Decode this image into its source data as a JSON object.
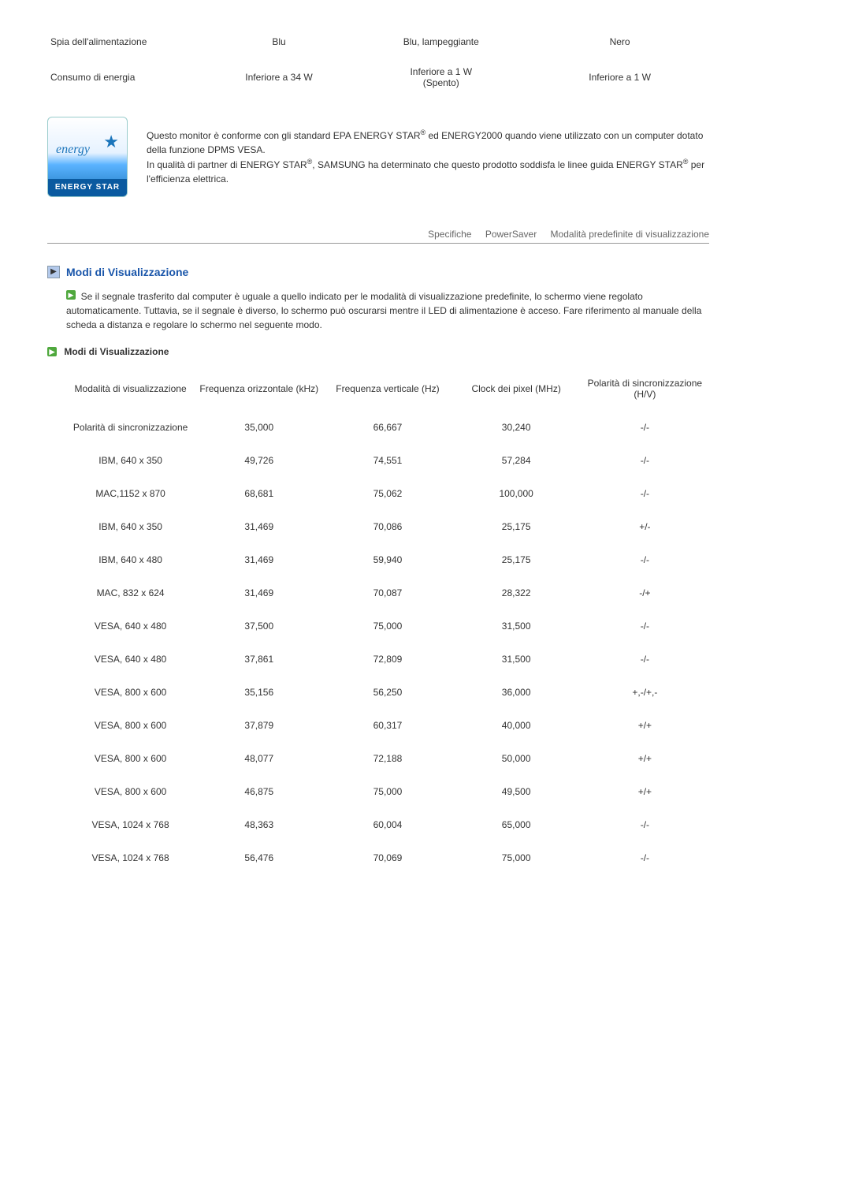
{
  "top_table": {
    "rows": [
      {
        "label": "Spia dell'alimentazione",
        "c1": "Blu",
        "c2": "Blu, lampeggiante",
        "c3": "Nero"
      },
      {
        "label": "Consumo di energia",
        "c1": "Inferiore a 34 W",
        "c2": "Inferiore a 1 W\n(Spento)",
        "c3": "Inferiore a 1 W"
      }
    ]
  },
  "estar": {
    "script": "energy",
    "band": "ENERGY STAR",
    "p1a": "Questo monitor è conforme con gli standard EPA ENERGY STAR",
    "p1b": " ed ENERGY2000 quando viene utilizzato con un computer dotato della funzione DPMS VESA.",
    "p2a": "In qualità di partner di ENERGY STAR",
    "p2b": ", SAMSUNG ha determinato che questo prodotto soddisfa le linee guida ENERGY STAR",
    "p2c": " per l'efficienza elettrica.",
    "reg": "®"
  },
  "tabs": {
    "t1": "Specifiche",
    "t2": "PowerSaver",
    "t3": "Modalità predefinite di visualizzazione"
  },
  "section_title": "Modi di Visualizzazione",
  "intro": "Se il segnale trasferito dal computer è uguale a quello indicato per le modalità di visualizzazione predefinite, lo schermo viene regolato automaticamente. Tuttavia, se il segnale è diverso, lo schermo può oscurarsi mentre il LED di alimentazione è acceso. Fare riferimento al manuale della scheda a distanza e regolare lo schermo nel seguente modo.",
  "sub_title": "Modi di Visualizzazione",
  "modes": {
    "headers": {
      "h1": "Modalità di visualizzazione",
      "h2": "Frequenza orizzontale (kHz)",
      "h3": "Frequenza verticale (Hz)",
      "h4": "Clock dei pixel (MHz)",
      "h5": "Polarità di sincronizzazione (H/V)"
    },
    "rows": [
      {
        "c1": "Polarità di sincronizzazione",
        "c2": "35,000",
        "c3": "66,667",
        "c4": "30,240",
        "c5": "-/-"
      },
      {
        "c1": "IBM, 640 x 350",
        "c2": "49,726",
        "c3": "74,551",
        "c4": "57,284",
        "c5": "-/-"
      },
      {
        "c1": "MAC,1152 x 870",
        "c2": "68,681",
        "c3": "75,062",
        "c4": "100,000",
        "c5": "-/-"
      },
      {
        "c1": "IBM, 640 x 350",
        "c2": "31,469",
        "c3": "70,086",
        "c4": "25,175",
        "c5": "+/-"
      },
      {
        "c1": "IBM, 640 x 480",
        "c2": "31,469",
        "c3": "59,940",
        "c4": "25,175",
        "c5": "-/-"
      },
      {
        "c1": "MAC, 832 x 624",
        "c2": "31,469",
        "c3": "70,087",
        "c4": "28,322",
        "c5": "-/+"
      },
      {
        "c1": "VESA, 640 x 480",
        "c2": "37,500",
        "c3": "75,000",
        "c4": "31,500",
        "c5": "-/-"
      },
      {
        "c1": "VESA, 640 x 480",
        "c2": "37,861",
        "c3": "72,809",
        "c4": "31,500",
        "c5": "-/-"
      },
      {
        "c1": "VESA, 800 x 600",
        "c2": "35,156",
        "c3": "56,250",
        "c4": "36,000",
        "c5": "+,-/+,-"
      },
      {
        "c1": "VESA, 800 x 600",
        "c2": "37,879",
        "c3": "60,317",
        "c4": "40,000",
        "c5": "+/+"
      },
      {
        "c1": "VESA, 800 x 600",
        "c2": "48,077",
        "c3": "72,188",
        "c4": "50,000",
        "c5": "+/+"
      },
      {
        "c1": "VESA, 800 x 600",
        "c2": "46,875",
        "c3": "75,000",
        "c4": "49,500",
        "c5": "+/+"
      },
      {
        "c1": "VESA, 1024 x 768",
        "c2": "48,363",
        "c3": "60,004",
        "c4": "65,000",
        "c5": "-/-"
      },
      {
        "c1": "VESA, 1024 x 768",
        "c2": "56,476",
        "c3": "70,069",
        "c4": "75,000",
        "c5": "-/-"
      }
    ]
  }
}
